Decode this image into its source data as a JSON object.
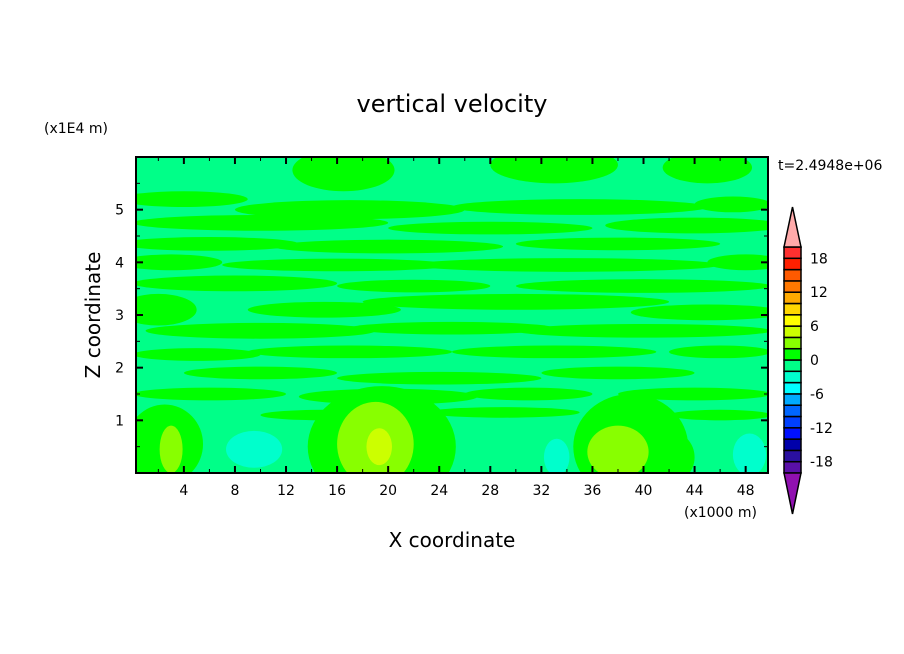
{
  "chart_data": {
    "type": "contour",
    "title": "vertical velocity",
    "xlabel": "X coordinate",
    "ylabel": "Z coordinate",
    "x_unit_label": "(x1000 m)",
    "y_unit_label": "(x1E4 m)",
    "time_label": "t=2.4948e+06",
    "xlim": [
      0.25,
      49.75
    ],
    "ylim": [
      0,
      6
    ],
    "x_ticks": [
      4,
      8,
      12,
      16,
      20,
      24,
      28,
      32,
      36,
      40,
      44,
      48
    ],
    "y_ticks": [
      1,
      2,
      3,
      4,
      5
    ],
    "colorbar": {
      "levels": [
        -20,
        -18,
        -16,
        -14,
        -12,
        -10,
        -8,
        -6,
        -4,
        -2,
        0,
        2,
        4,
        6,
        8,
        10,
        12,
        14,
        16,
        18,
        20
      ],
      "tick_labels": [
        "18",
        "12",
        "6",
        "0",
        "-6",
        "-12",
        "-18"
      ],
      "tick_values": [
        18,
        12,
        6,
        0,
        -6,
        -12,
        -18
      ],
      "colors_low_to_high": [
        "#5a10a8",
        "#2a10a0",
        "#0000aa",
        "#0010ff",
        "#0040ff",
        "#0066ff",
        "#00aaff",
        "#00ffff",
        "#00ffcc",
        "#00ff88",
        "#00ff00",
        "#88ff00",
        "#ccff00",
        "#ffff00",
        "#ffd700",
        "#ffaa00",
        "#ff7800",
        "#ff5a00",
        "#ff2000",
        "#ff3030"
      ],
      "below_color": "#9010b0",
      "above_color": "#ffaaaa"
    },
    "background_level_color": "#00ff88"
  }
}
